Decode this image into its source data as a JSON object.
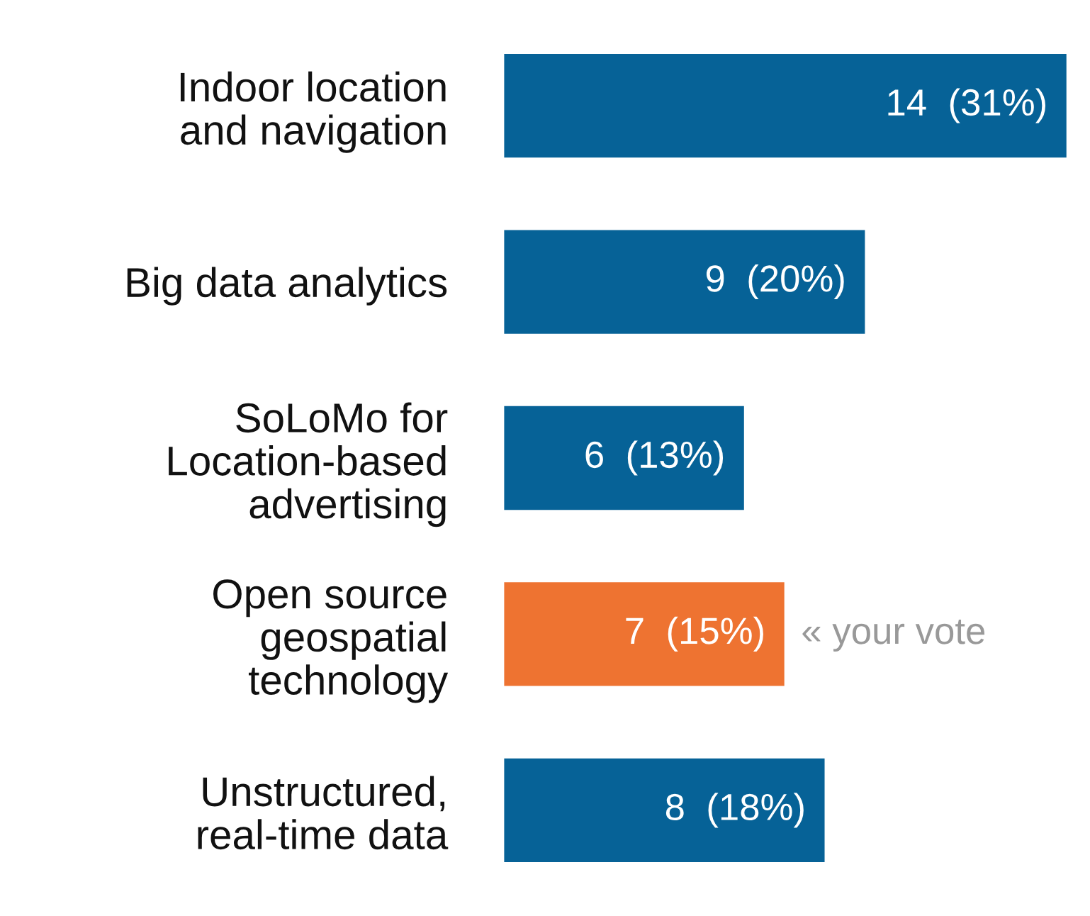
{
  "chart_data": {
    "type": "bar",
    "orientation": "horizontal",
    "categories": [
      "Indoor location\nand navigation",
      "Big data analytics",
      "SoLoMo for\nLocation-based\nadvertising",
      "Open source\ngeospatial\ntechnology",
      "Unstructured,\nreal-time data"
    ],
    "values": [
      14,
      9,
      6,
      7,
      8
    ],
    "value_labels": [
      "14  (31%)",
      "9  (20%)",
      "6  (13%)",
      "7  (15%)",
      "8  (18%)"
    ],
    "colors": [
      "#066297",
      "#066297",
      "#066297",
      "#ee7331",
      "#066297"
    ],
    "annotations": [
      {
        "text": "« your vote",
        "x": 7,
        "y": "Open source\ngeospatial\ntechnology"
      }
    ],
    "grid": false,
    "legend": false
  }
}
